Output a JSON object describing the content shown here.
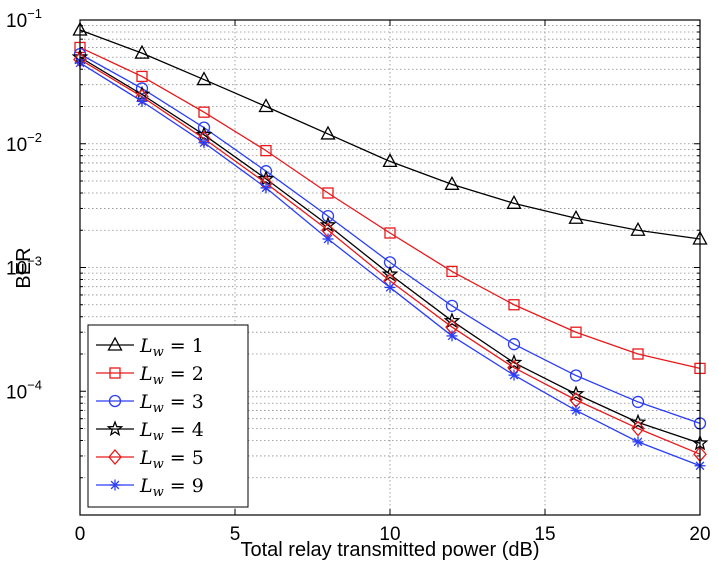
{
  "chart_data": {
    "type": "line",
    "title": "",
    "xlabel": "Total relay transmitted power (dB)",
    "ylabel": "BER",
    "xscale": "linear",
    "yscale": "log",
    "xlim": [
      0,
      20
    ],
    "ylim": [
      1e-05,
      0.1
    ],
    "xticks": [
      0,
      5,
      10,
      15,
      20
    ],
    "xtick_labels": [
      "0",
      "5",
      "10",
      "15",
      "20"
    ],
    "yticks": [
      0.0001,
      0.001,
      0.01,
      0.1
    ],
    "ytick_labels": [
      {
        "base": "10",
        "exp": "−4"
      },
      {
        "base": "10",
        "exp": "−3"
      },
      {
        "base": "10",
        "exp": "−2"
      },
      {
        "base": "10",
        "exp": "−1"
      }
    ],
    "grid": true,
    "legend_position": "bottom-left",
    "x": [
      0,
      2,
      4,
      6,
      8,
      10,
      12,
      14,
      16,
      18,
      20
    ],
    "series": [
      {
        "name": "L_w = 1",
        "legend_main": "L",
        "legend_sub": "w",
        "legend_rest": " = 1",
        "color": "#000000",
        "marker": "triangle",
        "values": [
          0.083,
          0.054,
          0.033,
          0.02,
          0.012,
          0.0072,
          0.0047,
          0.0033,
          0.0025,
          0.002,
          0.0017
        ]
      },
      {
        "name": "L_w = 2",
        "legend_main": "L",
        "legend_sub": "w",
        "legend_rest": " = 2",
        "color": "#e8191b",
        "marker": "square",
        "values": [
          0.06,
          0.035,
          0.018,
          0.0088,
          0.004,
          0.0019,
          0.00093,
          0.0005,
          0.0003,
          0.0002,
          0.000153
        ]
      },
      {
        "name": "L_w = 3",
        "legend_main": "L",
        "legend_sub": "w",
        "legend_rest": " = 3",
        "color": "#2b3ef5",
        "marker": "circle",
        "values": [
          0.053,
          0.028,
          0.0135,
          0.006,
          0.0026,
          0.0011,
          0.00049,
          0.00024,
          0.000134,
          8.2e-05,
          5.5e-05
        ]
      },
      {
        "name": "L_w = 4",
        "legend_main": "L",
        "legend_sub": "w",
        "legend_rest": " = 4",
        "color": "#000000",
        "marker": "star",
        "values": [
          0.05,
          0.025,
          0.0118,
          0.0052,
          0.0022,
          0.00088,
          0.00037,
          0.00017,
          9.5e-05,
          5.6e-05,
          3.8e-05
        ]
      },
      {
        "name": "L_w = 5",
        "legend_main": "L",
        "legend_sub": "w",
        "legend_rest": " = 5",
        "color": "#e8191b",
        "marker": "diamond",
        "values": [
          0.048,
          0.024,
          0.011,
          0.0048,
          0.002,
          0.00078,
          0.00033,
          0.000155,
          8.5e-05,
          5e-05,
          3.1e-05
        ]
      },
      {
        "name": "L_w = 9",
        "legend_main": "L",
        "legend_sub": "w",
        "legend_rest": " = 9",
        "color": "#2b3ef5",
        "marker": "asterisk",
        "values": [
          0.045,
          0.022,
          0.0102,
          0.0044,
          0.0017,
          0.00069,
          0.00028,
          0.000135,
          7e-05,
          3.9e-05,
          2.5e-05
        ]
      }
    ]
  }
}
